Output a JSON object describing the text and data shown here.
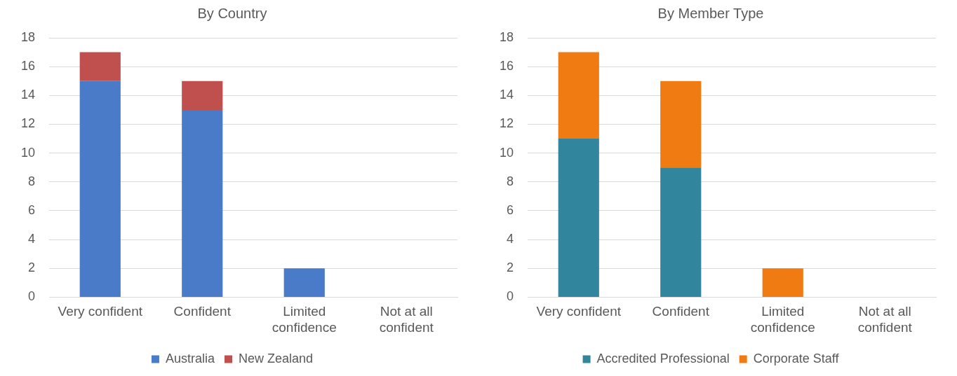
{
  "chart_data": [
    {
      "type": "bar",
      "title": "By Country",
      "categories": [
        "Very confident",
        "Confident",
        "Limited confidence",
        "Not at all confident"
      ],
      "stacked": true,
      "series": [
        {
          "name": "Australia",
          "color": "#4a7bc8",
          "values": [
            15,
            13,
            2,
            0
          ]
        },
        {
          "name": "New Zealand",
          "color": "#c0504d",
          "values": [
            2,
            2,
            0,
            0
          ]
        }
      ],
      "ylim": [
        0,
        18
      ],
      "yticks": [
        0,
        2,
        4,
        6,
        8,
        10,
        12,
        14,
        16,
        18
      ],
      "grid": "y",
      "legend": "bottom"
    },
    {
      "type": "bar",
      "title": "By Member Type",
      "categories": [
        "Very confident",
        "Confident",
        "Limited confidence",
        "Not at all confident"
      ],
      "stacked": true,
      "series": [
        {
          "name": "Accredited Professional",
          "color": "#31859c",
          "values": [
            11,
            9,
            0,
            0
          ]
        },
        {
          "name": "Corporate Staff",
          "color": "#f07b12",
          "values": [
            6,
            6,
            2,
            0
          ]
        }
      ],
      "ylim": [
        0,
        18
      ],
      "yticks": [
        0,
        2,
        4,
        6,
        8,
        10,
        12,
        14,
        16,
        18
      ],
      "grid": "y",
      "legend": "bottom"
    }
  ]
}
